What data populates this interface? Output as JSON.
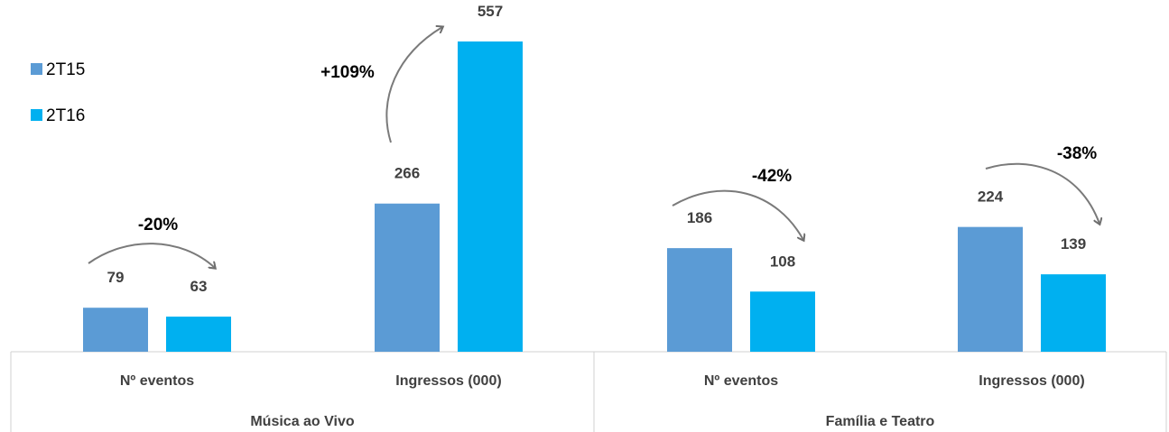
{
  "chart_data": {
    "type": "bar",
    "groups": [
      {
        "name": "Música ao Vivo",
        "categories": [
          "Nº eventos",
          "Ingressos (000)"
        ]
      },
      {
        "name": "Família e Teatro",
        "categories": [
          "Nº eventos",
          "Ingressos (000)"
        ]
      }
    ],
    "categories": [
      "Nº eventos",
      "Ingressos (000)",
      "Nº eventos",
      "Ingressos (000)"
    ],
    "series": [
      {
        "name": "2T15",
        "color": "#5B9BD5",
        "values": [
          79,
          266,
          186,
          224
        ]
      },
      {
        "name": "2T16",
        "color": "#00B0F0",
        "values": [
          63,
          557,
          108,
          139
        ]
      }
    ],
    "annotations": [
      "-20%",
      "+109%",
      "-42%",
      "-38%"
    ],
    "ylim": [
      0,
      600
    ],
    "grid": false,
    "legend": "top-left",
    "title": "",
    "xlabel": "",
    "ylabel": ""
  }
}
